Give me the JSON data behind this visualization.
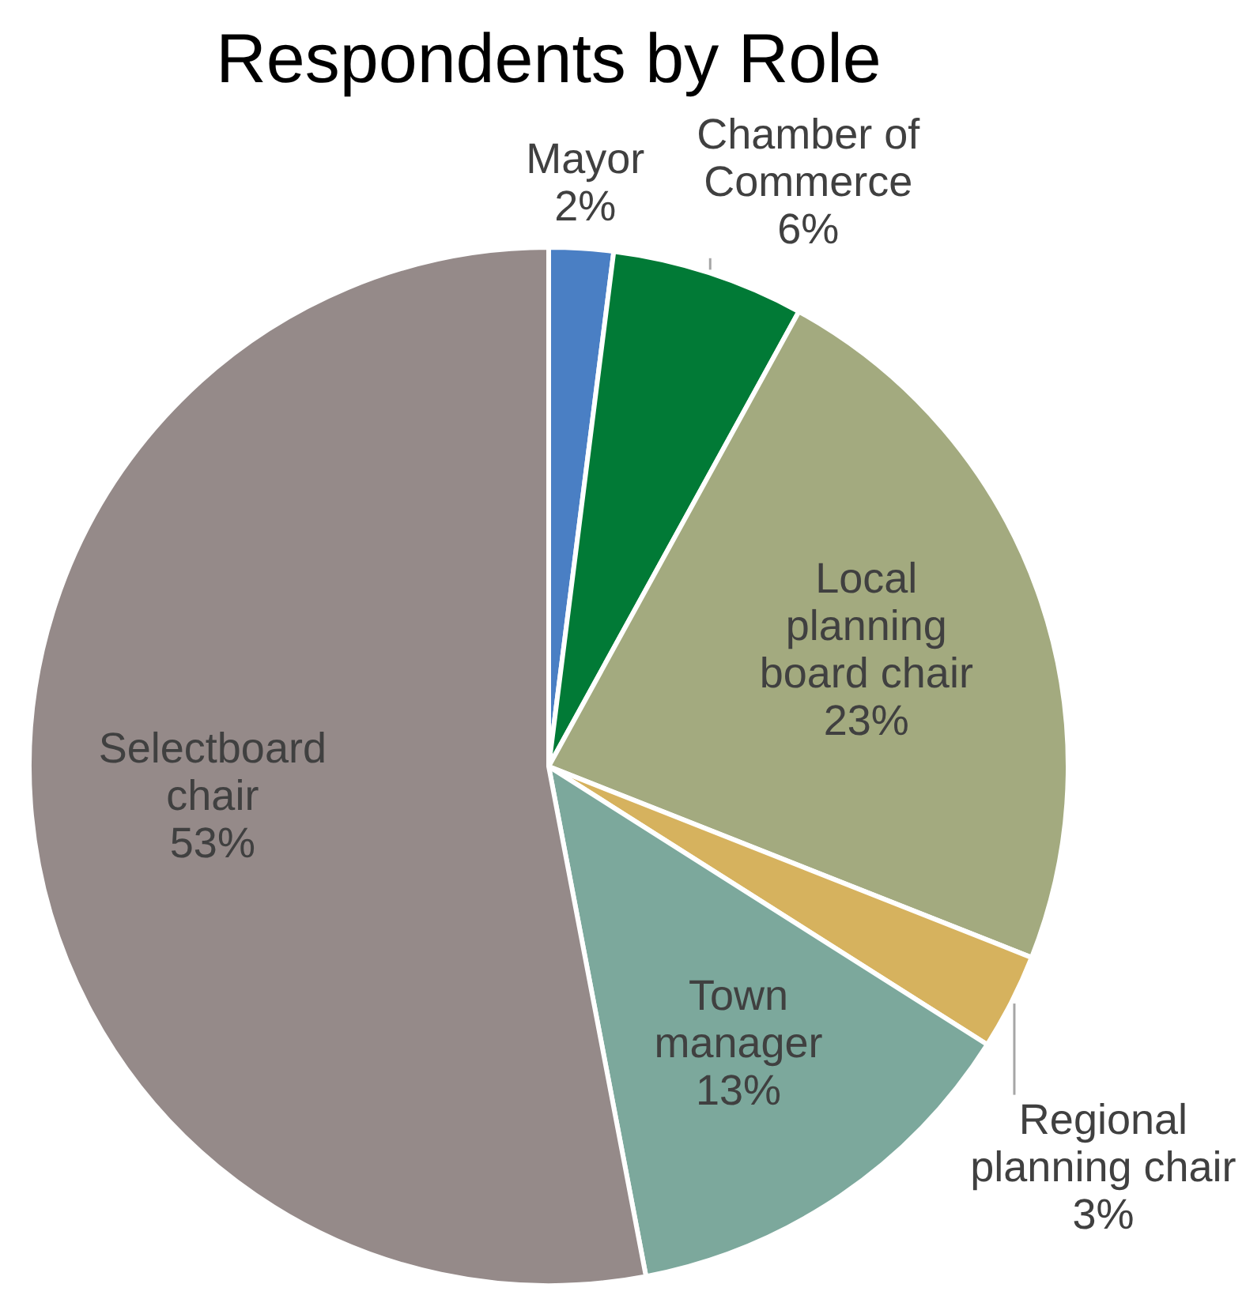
{
  "chart_data": {
    "type": "pie",
    "title": "Respondents by Role",
    "categories": [
      "Mayor",
      "Chamber of Commerce",
      "Local planning board chair",
      "Regional planning chair",
      "Town manager",
      "Selectboard chair"
    ],
    "values": [
      2,
      6,
      23,
      3,
      13,
      53
    ],
    "value_labels": [
      "2%",
      "6%",
      "23%",
      "3%",
      "13%",
      "53%"
    ],
    "colors": [
      "#4a7fc4",
      "#017a36",
      "#a3aa7f",
      "#d6b25e",
      "#7ca89c",
      "#958a89"
    ],
    "legend": false
  }
}
